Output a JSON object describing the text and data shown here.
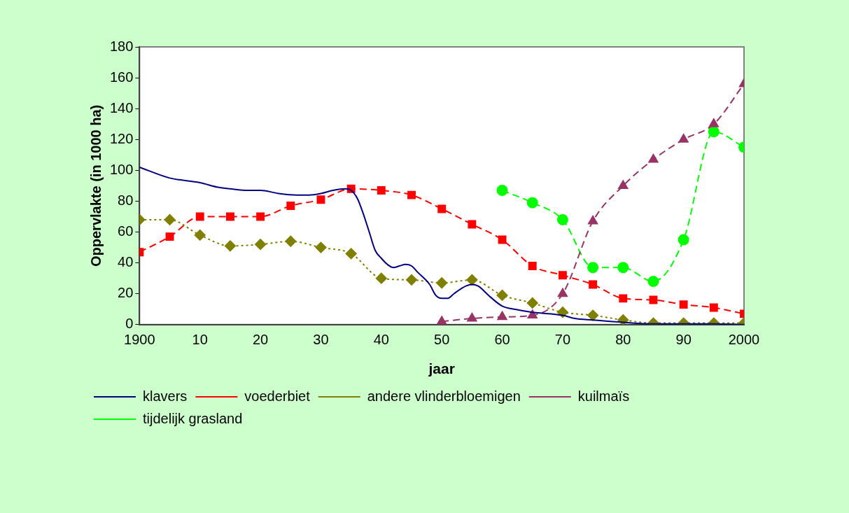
{
  "chart_data": {
    "type": "line",
    "xlabel": "jaar",
    "ylabel": "Oppervlakte (in 1000 ha)",
    "xlim": [
      1900,
      2000
    ],
    "xticks": [
      1900,
      {
        "value": 1910,
        "label": "10"
      },
      {
        "value": 1920,
        "label": "20"
      },
      {
        "value": 1930,
        "label": "30"
      },
      {
        "value": 1940,
        "label": "40"
      },
      {
        "value": 1950,
        "label": "50"
      },
      {
        "value": 1960,
        "label": "60"
      },
      {
        "value": 1970,
        "label": "70"
      },
      {
        "value": 1980,
        "label": "80"
      },
      {
        "value": 1990,
        "label": "90"
      },
      2000
    ],
    "ylim": [
      0,
      180
    ],
    "yticks": [
      0,
      20,
      40,
      60,
      80,
      100,
      120,
      140,
      160,
      180
    ],
    "grid": false,
    "legend": "bottom",
    "series": [
      {
        "name": "klavers",
        "color": "#000080",
        "marker": "none",
        "line_style": "solid",
        "x": [
          1900,
          1905,
          1910,
          1913,
          1915,
          1918,
          1920,
          1923,
          1926,
          1928,
          1930,
          1932,
          1934,
          1935,
          1936,
          1937,
          1938,
          1939,
          1940,
          1941,
          1942,
          1943,
          1944,
          1945,
          1946,
          1948,
          1949,
          1950,
          1951,
          1952,
          1954,
          1955,
          1956,
          1958,
          1960,
          1962,
          1965,
          1970,
          1972,
          1975,
          1980,
          1985,
          1990,
          1995,
          2000
        ],
        "values": [
          102,
          95,
          92,
          89,
          88,
          87,
          87,
          85,
          84,
          84,
          85,
          87,
          88,
          87,
          82,
          72,
          60,
          48,
          43,
          39,
          37,
          38,
          39,
          38,
          34,
          26,
          19,
          17,
          17,
          20,
          25,
          26,
          25,
          18,
          12,
          10,
          8,
          6,
          4,
          3,
          1.5,
          0.5,
          0.5,
          0.5,
          0
        ]
      },
      {
        "name": "voederbiet",
        "color": "#ff0000",
        "marker": "square",
        "line_style": "dashed",
        "x": [
          1900,
          1905,
          1910,
          1915,
          1920,
          1925,
          1930,
          1935,
          1940,
          1945,
          1950,
          1955,
          1960,
          1965,
          1970,
          1975,
          1980,
          1985,
          1990,
          1995,
          2000
        ],
        "values": [
          47,
          57,
          70,
          70,
          70,
          77,
          81,
          88,
          87,
          84,
          75,
          65,
          55,
          38,
          32,
          26,
          17,
          16,
          13,
          11,
          7
        ]
      },
      {
        "name": "andere vlinderbloemigen",
        "color": "#808000",
        "marker": "diamond",
        "line_style": "dotted",
        "x": [
          1900,
          1905,
          1910,
          1915,
          1920,
          1925,
          1930,
          1935,
          1940,
          1945,
          1950,
          1955,
          1960,
          1965,
          1970,
          1975,
          1980,
          1985,
          1990,
          1995,
          2000
        ],
        "values": [
          68,
          68,
          58,
          51,
          52,
          54,
          50,
          46,
          30,
          29,
          27,
          29,
          19,
          14,
          8,
          6,
          3,
          1,
          1,
          1,
          1
        ]
      },
      {
        "name": "kuilmaïs",
        "color": "#993366",
        "marker": "triangle",
        "line_style": "dashed",
        "x": [
          1950,
          1955,
          1960,
          1965,
          1970,
          1975,
          1980,
          1985,
          1990,
          1995,
          2000
        ],
        "values": [
          2,
          4,
          5,
          6,
          20,
          67,
          90,
          107,
          120,
          130,
          156
        ]
      },
      {
        "name": "tijdelijk grasland",
        "color": "#00ff00",
        "marker": "circle",
        "line_style": "dashed",
        "x": [
          1960,
          1965,
          1970,
          1975,
          1980,
          1985,
          1990,
          1995,
          2000
        ],
        "values": [
          87,
          79,
          68,
          37,
          37,
          28,
          55,
          125,
          115
        ]
      }
    ]
  }
}
